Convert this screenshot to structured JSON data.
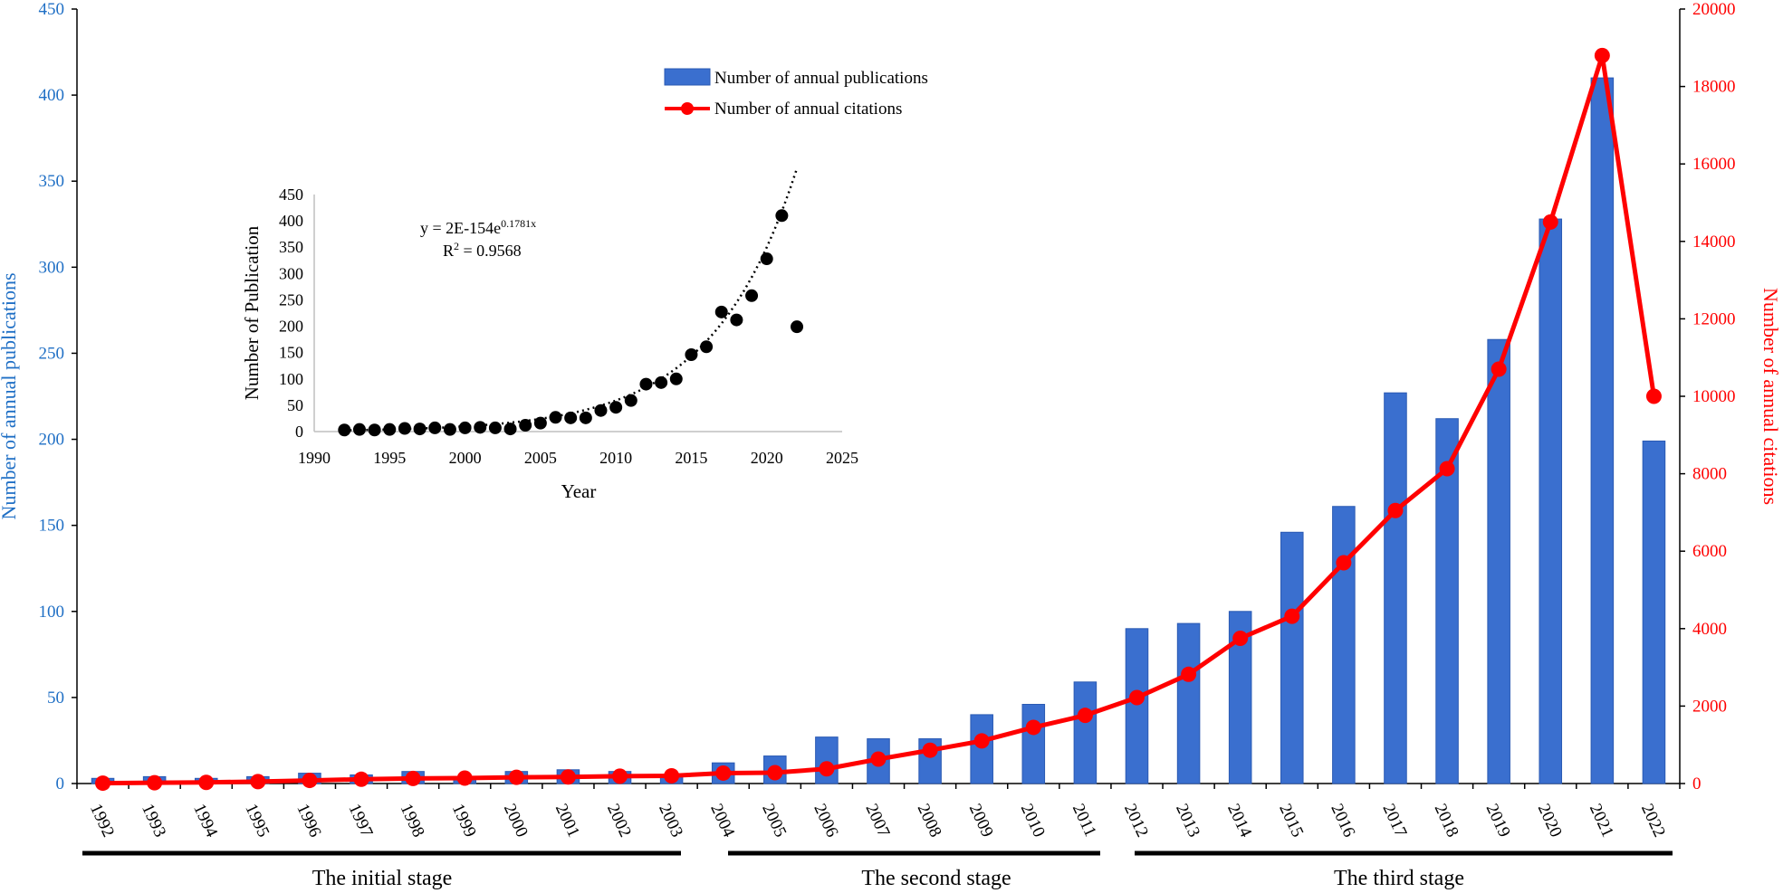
{
  "colors": {
    "bar": "#3a6fcf",
    "bar_edge": "#2a5ab3",
    "line": "#ff0000",
    "left_axis": "#1f6fc5",
    "right_axis": "#ff0000"
  },
  "chart_data": [
    {
      "type": "bar+line",
      "categories": [
        "1992",
        "1993",
        "1994",
        "1995",
        "1996",
        "1997",
        "1998",
        "1999",
        "2000",
        "2001",
        "2002",
        "2003",
        "2004",
        "2005",
        "2006",
        "2007",
        "2008",
        "2009",
        "2010",
        "2011",
        "2012",
        "2013",
        "2014",
        "2015",
        "2016",
        "2017",
        "2018",
        "2019",
        "2020",
        "2021",
        "2022"
      ],
      "series": [
        {
          "name": "Number of annual publications",
          "axis": "left",
          "kind": "bar",
          "values": [
            3,
            4,
            3,
            4,
            6,
            5,
            7,
            4,
            7,
            8,
            7,
            5,
            12,
            16,
            27,
            26,
            26,
            40,
            46,
            59,
            90,
            93,
            100,
            146,
            161,
            227,
            212,
            258,
            328,
            410,
            199
          ]
        },
        {
          "name": "Number of annual citations",
          "axis": "right",
          "kind": "line",
          "values": [
            10,
            20,
            30,
            50,
            80,
            110,
            130,
            140,
            160,
            170,
            190,
            200,
            270,
            280,
            380,
            630,
            860,
            1100,
            1450,
            1760,
            2220,
            2820,
            3750,
            4320,
            5700,
            7050,
            8130,
            10700,
            14500,
            18800,
            10000
          ]
        }
      ],
      "y_left": {
        "label": "Number of annual publications",
        "range": [
          0,
          450
        ],
        "ticks": [
          "0",
          "50",
          "100",
          "150",
          "200",
          "250",
          "300",
          "350",
          "400",
          "450"
        ]
      },
      "y_right": {
        "label": "Number of annual citations",
        "range": [
          0,
          20000
        ],
        "ticks": [
          "0",
          "2000",
          "4000",
          "6000",
          "8000",
          "10000",
          "12000",
          "14000",
          "16000",
          "18000",
          "20000"
        ]
      },
      "legend": {
        "position": "top-center",
        "entries": [
          "Number of annual publications",
          "Number of annual citations"
        ]
      },
      "stages": [
        {
          "label": "The initial stage",
          "from": "1992",
          "to": "2003"
        },
        {
          "label": "The second stage",
          "from": "2004",
          "to": "2011"
        },
        {
          "label": "The third stage",
          "from": "2012",
          "to": "2022"
        }
      ]
    },
    {
      "type": "scatter",
      "title": "inset",
      "x": [
        1992,
        1993,
        1994,
        1995,
        1996,
        1997,
        1998,
        1999,
        2000,
        2001,
        2002,
        2003,
        2004,
        2005,
        2006,
        2007,
        2008,
        2009,
        2010,
        2011,
        2012,
        2013,
        2014,
        2015,
        2016,
        2017,
        2018,
        2019,
        2020,
        2021,
        2022
      ],
      "y": [
        3,
        4,
        3,
        4,
        6,
        5,
        7,
        4,
        7,
        8,
        7,
        5,
        12,
        16,
        27,
        26,
        26,
        40,
        46,
        59,
        90,
        93,
        100,
        146,
        161,
        227,
        212,
        258,
        328,
        410,
        199
      ],
      "xlabel": "Year",
      "ylabel": "Number of Publication",
      "xlim": [
        1990,
        2025
      ],
      "ylim": [
        0,
        450
      ],
      "x_ticks": [
        "1990",
        "1995",
        "2000",
        "2005",
        "2010",
        "2015",
        "2020",
        "2025"
      ],
      "y_ticks": [
        "0",
        "50",
        "100",
        "150",
        "200",
        "250",
        "300",
        "350",
        "400",
        "450"
      ],
      "trendline": {
        "type": "exponential",
        "a": 2e-154,
        "b": 0.1781,
        "x_from": 1992,
        "x_to": 2022
      },
      "equation": {
        "line1_prefix": "y = 2E-154e",
        "line1_exp": "0.1781x",
        "line2_prefix": "R",
        "line2_sup": "2",
        "line2_rest": " = 0.9568"
      }
    }
  ]
}
